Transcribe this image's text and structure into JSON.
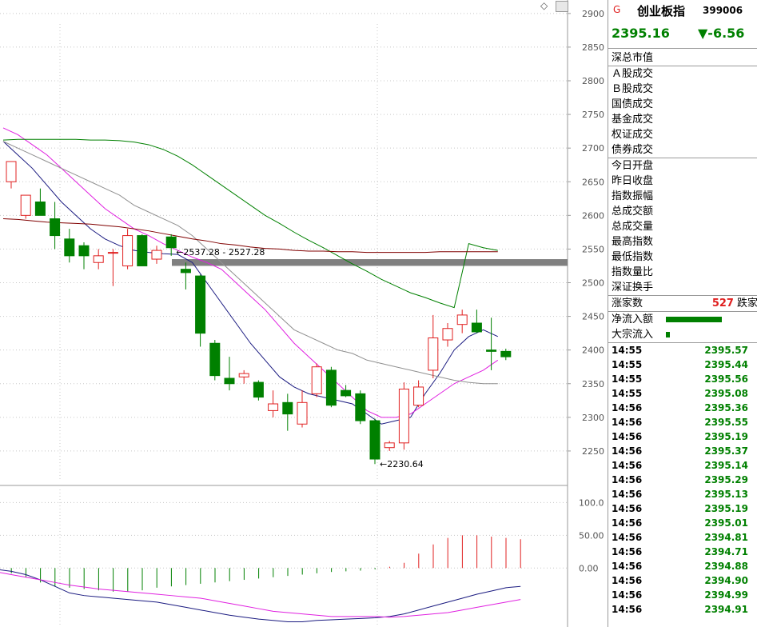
{
  "diamond_icon": "◇",
  "panel": {
    "g_tag": "G",
    "name": "创业板指",
    "code": "399006",
    "price": "2395.16",
    "change": "▼-6.56",
    "group1": [
      "深总市值"
    ],
    "group2": [
      "Ａ股成交",
      "Ｂ股成交",
      "国债成交",
      "基金成交",
      "权证成交",
      "债券成交"
    ],
    "group3": [
      "今日开盘",
      "昨日收盘",
      "指数振幅",
      "总成交额",
      "总成交量",
      "最高指数",
      "最低指数",
      "指数量比",
      "深证换手"
    ],
    "rise_label": "涨家数",
    "fall_value": "527",
    "fall_label": "跌家",
    "netflow_label": "净流入额",
    "block_label": "大宗流入",
    "ticks": [
      {
        "time": "14:55",
        "value": "2395.57"
      },
      {
        "time": "14:55",
        "value": "2395.44"
      },
      {
        "time": "14:55",
        "value": "2395.56"
      },
      {
        "time": "14:55",
        "value": "2395.08"
      },
      {
        "time": "14:56",
        "value": "2395.36"
      },
      {
        "time": "14:56",
        "value": "2395.55"
      },
      {
        "time": "14:56",
        "value": "2395.19"
      },
      {
        "time": "14:56",
        "value": "2395.37"
      },
      {
        "time": "14:56",
        "value": "2395.14"
      },
      {
        "time": "14:56",
        "value": "2395.29"
      },
      {
        "time": "14:56",
        "value": "2395.13"
      },
      {
        "time": "14:56",
        "value": "2395.19"
      },
      {
        "time": "14:56",
        "value": "2395.01"
      },
      {
        "time": "14:56",
        "value": "2394.81"
      },
      {
        "time": "14:56",
        "value": "2394.71"
      },
      {
        "time": "14:56",
        "value": "2394.88"
      },
      {
        "time": "14:56",
        "value": "2394.90"
      },
      {
        "time": "14:56",
        "value": "2394.99"
      },
      {
        "time": "14:56",
        "value": "2394.91"
      }
    ]
  },
  "chart_data": [
    {
      "type": "candlestick",
      "ylim": [
        2200,
        2920
      ],
      "yticks": [
        2250,
        2300,
        2350,
        2400,
        2450,
        2500,
        2550,
        2600,
        2650,
        2700,
        2750,
        2800,
        2850,
        2900
      ],
      "candles": [
        {
          "o": 2650,
          "h": 2680,
          "l": 2640,
          "c": 2680
        },
        {
          "o": 2600,
          "h": 2630,
          "l": 2595,
          "c": 2630
        },
        {
          "o": 2620,
          "h": 2640,
          "l": 2600,
          "c": 2600
        },
        {
          "o": 2595,
          "h": 2620,
          "l": 2550,
          "c": 2570
        },
        {
          "o": 2565,
          "h": 2580,
          "l": 2530,
          "c": 2540
        },
        {
          "o": 2555,
          "h": 2560,
          "l": 2520,
          "c": 2540
        },
        {
          "o": 2530,
          "h": 2550,
          "l": 2520,
          "c": 2540
        },
        {
          "o": 2545,
          "h": 2550,
          "l": 2495,
          "c": 2545
        },
        {
          "o": 2525,
          "h": 2580,
          "l": 2520,
          "c": 2570
        },
        {
          "o": 2570,
          "h": 2572,
          "l": 2525,
          "c": 2525
        },
        {
          "o": 2535,
          "h": 2555,
          "l": 2528,
          "c": 2548
        },
        {
          "o": 2568,
          "h": 2572,
          "l": 2540,
          "c": 2552
        },
        {
          "o": 2520,
          "h": 2530,
          "l": 2490,
          "c": 2515
        },
        {
          "o": 2510,
          "h": 2512,
          "l": 2405,
          "c": 2425
        },
        {
          "o": 2410,
          "h": 2415,
          "l": 2355,
          "c": 2362
        },
        {
          "o": 2358,
          "h": 2390,
          "l": 2340,
          "c": 2350
        },
        {
          "o": 2360,
          "h": 2370,
          "l": 2350,
          "c": 2365
        },
        {
          "o": 2352,
          "h": 2355,
          "l": 2325,
          "c": 2330
        },
        {
          "o": 2310,
          "h": 2340,
          "l": 2300,
          "c": 2320
        },
        {
          "o": 2322,
          "h": 2335,
          "l": 2280,
          "c": 2305
        },
        {
          "o": 2290,
          "h": 2340,
          "l": 2285,
          "c": 2322
        },
        {
          "o": 2335,
          "h": 2380,
          "l": 2330,
          "c": 2375
        },
        {
          "o": 2370,
          "h": 2375,
          "l": 2315,
          "c": 2318
        },
        {
          "o": 2340,
          "h": 2348,
          "l": 2330,
          "c": 2332
        },
        {
          "o": 2335,
          "h": 2340,
          "l": 2290,
          "c": 2295
        },
        {
          "o": 2295,
          "h": 2298,
          "l": 2230.64,
          "c": 2238
        },
        {
          "o": 2255,
          "h": 2265,
          "l": 2250,
          "c": 2262
        },
        {
          "o": 2262,
          "h": 2352,
          "l": 2252,
          "c": 2342
        },
        {
          "o": 2318,
          "h": 2355,
          "l": 2315,
          "c": 2345
        },
        {
          "o": 2370,
          "h": 2452,
          "l": 2358,
          "c": 2418
        },
        {
          "o": 2415,
          "h": 2440,
          "l": 2405,
          "c": 2432
        },
        {
          "o": 2438,
          "h": 2460,
          "l": 2425,
          "c": 2452
        },
        {
          "o": 2440,
          "h": 2460,
          "l": 2425,
          "c": 2427
        },
        {
          "o": 2400,
          "h": 2448,
          "l": 2370,
          "c": 2398
        },
        {
          "o": 2398,
          "h": 2402,
          "l": 2385,
          "c": 2390
        }
      ],
      "ma_series": [
        {
          "color": "#1a1a80",
          "values": [
            2710,
            2690,
            2670,
            2645,
            2620,
            2600,
            2580,
            2565,
            2555,
            2548,
            2545,
            2543,
            2542,
            2530,
            2500,
            2470,
            2440,
            2410,
            2385,
            2360,
            2345,
            2335,
            2330,
            2325,
            2320,
            2305,
            2290,
            2295,
            2300,
            2335,
            2365,
            2400,
            2420,
            2430,
            2420
          ]
        },
        {
          "color": "#e020e0",
          "values": [
            2730,
            2720,
            2705,
            2690,
            2670,
            2650,
            2630,
            2610,
            2595,
            2580,
            2570,
            2558,
            2548,
            2538,
            2530,
            2520,
            2500,
            2480,
            2460,
            2435,
            2410,
            2390,
            2370,
            2350,
            2330,
            2310,
            2300,
            2300,
            2305,
            2320,
            2335,
            2350,
            2360,
            2370,
            2385
          ]
        },
        {
          "color": "#909090",
          "values": [
            2710,
            2700,
            2690,
            2680,
            2670,
            2660,
            2650,
            2640,
            2630,
            2615,
            2605,
            2595,
            2585,
            2570,
            2550,
            2530,
            2510,
            2490,
            2470,
            2450,
            2430,
            2420,
            2410,
            2400,
            2395,
            2385,
            2380,
            2375,
            2370,
            2365,
            2360,
            2355,
            2352,
            2350,
            2350
          ]
        },
        {
          "color": "#008000",
          "values": [
            2712,
            2713,
            2713,
            2713,
            2713,
            2713,
            2712,
            2712,
            2711,
            2709,
            2705,
            2698,
            2688,
            2675,
            2660,
            2645,
            2630,
            2615,
            2600,
            2588,
            2575,
            2563,
            2552,
            2540,
            2528,
            2517,
            2505,
            2495,
            2485,
            2478,
            2470,
            2463,
            2558,
            2552,
            2548
          ]
        },
        {
          "color": "#800000",
          "values": [
            2595,
            2594,
            2592,
            2590,
            2589,
            2588,
            2587,
            2585,
            2583,
            2580,
            2577,
            2573,
            2569,
            2565,
            2562,
            2558,
            2556,
            2553,
            2551,
            2550,
            2548,
            2547,
            2547,
            2546,
            2546,
            2545,
            2545,
            2545,
            2545,
            2545,
            2546,
            2546,
            2546,
            2546,
            2546
          ]
        }
      ],
      "annotations": [
        {
          "text": "2537.28 - 2527.28",
          "x_index": 11,
          "y": 2546
        },
        {
          "text": "2230.64",
          "x_index": 25,
          "y": 2230.64
        }
      ],
      "band": [
        2525,
        2535
      ]
    },
    {
      "type": "bar",
      "ylim": [
        -90,
        120
      ],
      "yticks": [
        0.0,
        50.0,
        100.0
      ],
      "ytick_labels": [
        "0.00",
        "50.00",
        "100.0"
      ],
      "values": [
        -6,
        -8,
        -14,
        -22,
        -28,
        -30,
        -32,
        -34,
        -36,
        -36,
        -34,
        -30,
        -28,
        -26,
        -24,
        -22,
        -20,
        -18,
        -16,
        -14,
        -12,
        -10,
        -8,
        -6,
        -5,
        -4,
        -2,
        2,
        8,
        22,
        36,
        46,
        50,
        50,
        48,
        46,
        44
      ],
      "lines": [
        {
          "color": "#1a1a80",
          "values": [
            -2,
            -5,
            -10,
            -18,
            -28,
            -38,
            -42,
            -44,
            -46,
            -48,
            -50,
            -52,
            -56,
            -60,
            -64,
            -68,
            -72,
            -75,
            -78,
            -80,
            -82,
            -82,
            -80,
            -79,
            -78,
            -77,
            -76,
            -74,
            -70,
            -64,
            -58,
            -52,
            -46,
            -40,
            -35,
            -30,
            -28
          ]
        },
        {
          "color": "#e020e0",
          "values": [
            -6,
            -10,
            -14,
            -18,
            -22,
            -26,
            -29,
            -32,
            -34,
            -36,
            -38,
            -40,
            -42,
            -44,
            -46,
            -50,
            -54,
            -58,
            -62,
            -66,
            -68,
            -70,
            -72,
            -74,
            -74,
            -74,
            -74,
            -75,
            -74,
            -72,
            -70,
            -68,
            -64,
            -60,
            -56,
            -52,
            -48
          ]
        }
      ]
    }
  ]
}
